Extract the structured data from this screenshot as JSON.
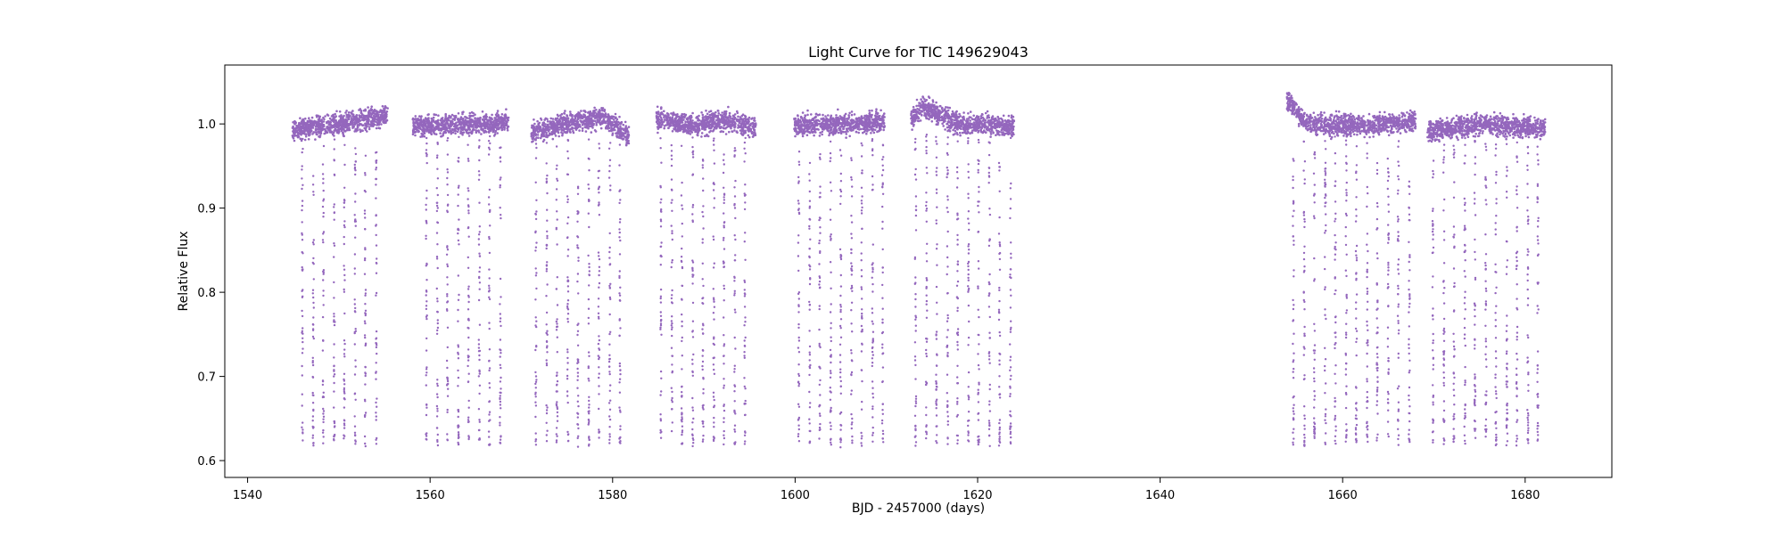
{
  "chart_data": {
    "type": "scatter",
    "title": "Light Curve for TIC 149629043",
    "xlabel": "BJD - 2457000 (days)",
    "ylabel": "Relative Flux",
    "xlim": [
      1537.5,
      1689.5
    ],
    "ylim": [
      0.58,
      1.07
    ],
    "xticks": [
      1540,
      1560,
      1580,
      1600,
      1620,
      1640,
      1660,
      1680
    ],
    "yticks": [
      0.6,
      0.7,
      0.8,
      0.9,
      1.0
    ],
    "xtick_labels": [
      "1540",
      "1560",
      "1580",
      "1600",
      "1620",
      "1640",
      "1660",
      "1680"
    ],
    "ytick_labels": [
      "0.6",
      "0.7",
      "0.8",
      "0.9",
      "1.0"
    ],
    "grid": false,
    "legend": "none",
    "point_color": "#9467bd",
    "series": [
      {
        "segments": [
          {
            "x": [
              1544.9,
              1550.0,
              1555.4
            ],
            "y": [
              0.992,
              1.0,
              1.01
            ]
          },
          {
            "x": [
              1558.1,
              1563.0,
              1568.6
            ],
            "y": [
              0.998,
              0.998,
              1.003
            ]
          },
          {
            "x": [
              1571.1,
              1576.0,
              1579.0,
              1581.8
            ],
            "y": [
              0.99,
              1.003,
              1.008,
              0.985
            ]
          },
          {
            "x": [
              1584.8,
              1589.0,
              1592.5,
              1595.7
            ],
            "y": [
              1.005,
              0.998,
              1.005,
              0.995
            ]
          },
          {
            "x": [
              1599.9,
              1605.0,
              1609.8
            ],
            "y": [
              0.998,
              1.0,
              1.002
            ]
          },
          {
            "x": [
              1612.7,
              1614.0,
              1618.0,
              1624.0
            ],
            "y": [
              1.005,
              1.02,
              1.0,
              0.998
            ]
          },
          {
            "x": [
              1653.9,
              1656.0,
              1662.0,
              1668.0
            ],
            "y": [
              1.03,
              1.0,
              0.998,
              1.003
            ]
          },
          {
            "x": [
              1669.3,
              1675.0,
              1682.2
            ],
            "y": [
              0.99,
              1.0,
              0.995
            ]
          }
        ],
        "transit_times": [
          1546.0,
          1547.2,
          1548.3,
          1549.5,
          1550.6,
          1551.8,
          1552.9,
          1554.1,
          1559.6,
          1560.8,
          1561.9,
          1563.1,
          1564.2,
          1565.4,
          1566.5,
          1567.7,
          1571.6,
          1572.8,
          1573.9,
          1575.1,
          1576.2,
          1577.4,
          1578.5,
          1579.7,
          1580.8,
          1585.3,
          1586.5,
          1587.6,
          1588.8,
          1589.9,
          1591.1,
          1592.2,
          1593.4,
          1594.5,
          1600.4,
          1601.6,
          1602.7,
          1603.9,
          1605.0,
          1606.2,
          1607.3,
          1608.5,
          1609.6,
          1613.2,
          1614.4,
          1615.5,
          1616.7,
          1617.8,
          1619.0,
          1620.1,
          1621.3,
          1622.4,
          1623.6,
          1654.6,
          1655.8,
          1656.9,
          1658.1,
          1659.2,
          1660.4,
          1661.5,
          1662.7,
          1663.8,
          1665.0,
          1666.1,
          1667.3,
          1669.9,
          1671.1,
          1672.2,
          1673.4,
          1674.5,
          1675.7,
          1676.8,
          1678.0,
          1679.1,
          1680.3,
          1681.4
        ],
        "transit_depth_min": 0.62
      }
    ]
  }
}
